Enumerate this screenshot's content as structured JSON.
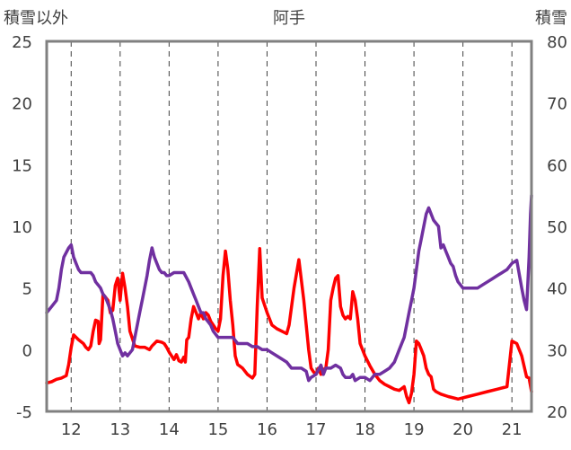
{
  "chart_data": {
    "type": "line",
    "title": "阿手",
    "ylabel_left": "積雪以外",
    "ylabel_right": "積雪",
    "x_ticks": [
      "12",
      "13",
      "14",
      "15",
      "16",
      "17",
      "18",
      "19",
      "20",
      "21"
    ],
    "xlim": [
      11.5,
      21.4
    ],
    "ylim_left": [
      -5,
      25
    ],
    "ylim_right": [
      20,
      80
    ],
    "left_ticks": [
      "25",
      "20",
      "15",
      "10",
      "5",
      "0",
      "-5"
    ],
    "right_ticks": [
      "80",
      "70",
      "60",
      "50",
      "40",
      "30",
      "20"
    ],
    "grid": {
      "vertical_dashed": true,
      "horizontal": false
    },
    "colors": {
      "red_series": "#ff0000",
      "purple_series": "#7030a0",
      "frame": "#808080"
    },
    "series": [
      {
        "axis": "left",
        "color": "#ff0000",
        "points": [
          [
            11.5,
            -2.7
          ],
          [
            11.6,
            -2.6
          ],
          [
            11.7,
            -2.4
          ],
          [
            11.8,
            -2.3
          ],
          [
            11.9,
            -2.1
          ],
          [
            11.95,
            -1.2
          ],
          [
            12.0,
            0.2
          ],
          [
            12.05,
            1.2
          ],
          [
            12.15,
            0.8
          ],
          [
            12.25,
            0.5
          ],
          [
            12.3,
            0.2
          ],
          [
            12.35,
            0.0
          ],
          [
            12.4,
            0.3
          ],
          [
            12.45,
            1.5
          ],
          [
            12.5,
            2.4
          ],
          [
            12.55,
            2.3
          ],
          [
            12.57,
            0.5
          ],
          [
            12.6,
            0.8
          ],
          [
            12.65,
            4.5
          ],
          [
            12.75,
            4.0
          ],
          [
            12.8,
            3.0
          ],
          [
            12.85,
            3.2
          ],
          [
            12.9,
            5.2
          ],
          [
            12.95,
            5.8
          ],
          [
            13.0,
            4.0
          ],
          [
            13.05,
            6.2
          ],
          [
            13.1,
            5.0
          ],
          [
            13.15,
            3.5
          ],
          [
            13.2,
            1.5
          ],
          [
            13.3,
            0.3
          ],
          [
            13.4,
            0.2
          ],
          [
            13.5,
            0.2
          ],
          [
            13.6,
            0.0
          ],
          [
            13.65,
            0.3
          ],
          [
            13.7,
            0.5
          ],
          [
            13.75,
            0.7
          ],
          [
            13.85,
            0.6
          ],
          [
            13.9,
            0.5
          ],
          [
            13.95,
            0.2
          ],
          [
            14.0,
            -0.2
          ],
          [
            14.05,
            -0.5
          ],
          [
            14.1,
            -0.8
          ],
          [
            14.15,
            -0.4
          ],
          [
            14.2,
            -0.9
          ],
          [
            14.25,
            -1.0
          ],
          [
            14.3,
            -0.6
          ],
          [
            14.33,
            -1.0
          ],
          [
            14.36,
            0.8
          ],
          [
            14.4,
            1.0
          ],
          [
            14.45,
            2.5
          ],
          [
            14.5,
            3.5
          ],
          [
            14.55,
            3.0
          ],
          [
            14.6,
            2.5
          ],
          [
            14.65,
            3.0
          ],
          [
            14.7,
            2.5
          ],
          [
            14.75,
            3.0
          ],
          [
            14.8,
            2.8
          ],
          [
            14.85,
            2.3
          ],
          [
            14.9,
            2.0
          ],
          [
            14.95,
            1.7
          ],
          [
            15.0,
            1.5
          ],
          [
            15.05,
            2.5
          ],
          [
            15.1,
            6.0
          ],
          [
            15.15,
            8.0
          ],
          [
            15.2,
            6.5
          ],
          [
            15.25,
            4.0
          ],
          [
            15.3,
            2.0
          ],
          [
            15.35,
            -0.5
          ],
          [
            15.4,
            -1.2
          ],
          [
            15.5,
            -1.5
          ],
          [
            15.6,
            -2.0
          ],
          [
            15.7,
            -2.3
          ],
          [
            15.75,
            -2.0
          ],
          [
            15.8,
            3.5
          ],
          [
            15.85,
            8.2
          ],
          [
            15.9,
            4.2
          ],
          [
            16.0,
            3.0
          ],
          [
            16.1,
            2.0
          ],
          [
            16.2,
            1.7
          ],
          [
            16.3,
            1.5
          ],
          [
            16.4,
            1.3
          ],
          [
            16.45,
            2.0
          ],
          [
            16.55,
            5.0
          ],
          [
            16.65,
            7.3
          ],
          [
            16.75,
            4.0
          ],
          [
            16.8,
            2.0
          ],
          [
            16.85,
            0.0
          ],
          [
            16.9,
            -1.5
          ],
          [
            16.95,
            -1.8
          ],
          [
            17.0,
            -2.0
          ],
          [
            17.05,
            -1.5
          ],
          [
            17.1,
            -2.0
          ],
          [
            17.15,
            -1.6
          ],
          [
            17.2,
            -1.5
          ],
          [
            17.25,
            0.0
          ],
          [
            17.3,
            4.0
          ],
          [
            17.35,
            5.0
          ],
          [
            17.4,
            5.8
          ],
          [
            17.45,
            6.0
          ],
          [
            17.5,
            3.5
          ],
          [
            17.55,
            2.8
          ],
          [
            17.6,
            2.5
          ],
          [
            17.65,
            2.7
          ],
          [
            17.7,
            2.5
          ],
          [
            17.75,
            4.7
          ],
          [
            17.8,
            4.0
          ],
          [
            17.85,
            2.5
          ],
          [
            17.9,
            0.5
          ],
          [
            18.0,
            -0.5
          ],
          [
            18.1,
            -1.3
          ],
          [
            18.2,
            -2.0
          ],
          [
            18.3,
            -2.5
          ],
          [
            18.4,
            -2.8
          ],
          [
            18.5,
            -3.0
          ],
          [
            18.6,
            -3.2
          ],
          [
            18.7,
            -3.3
          ],
          [
            18.8,
            -3.0
          ],
          [
            18.85,
            -3.8
          ],
          [
            18.9,
            -4.3
          ],
          [
            18.95,
            -3.5
          ],
          [
            19.0,
            -2.0
          ],
          [
            19.05,
            0.7
          ],
          [
            19.1,
            0.5
          ],
          [
            19.15,
            0.0
          ],
          [
            19.2,
            -0.5
          ],
          [
            19.25,
            -1.5
          ],
          [
            19.3,
            -2.0
          ],
          [
            19.35,
            -2.2
          ],
          [
            19.4,
            -3.2
          ],
          [
            19.45,
            -3.4
          ],
          [
            19.55,
            -3.6
          ],
          [
            19.7,
            -3.8
          ],
          [
            19.9,
            -4.0
          ],
          [
            20.1,
            -3.8
          ],
          [
            20.3,
            -3.6
          ],
          [
            20.5,
            -3.4
          ],
          [
            20.7,
            -3.2
          ],
          [
            20.9,
            -3.0
          ],
          [
            21.0,
            0.7
          ],
          [
            21.1,
            0.5
          ],
          [
            21.2,
            -0.5
          ],
          [
            21.3,
            -2.2
          ],
          [
            21.35,
            -2.3
          ],
          [
            21.4,
            -3.4
          ]
        ]
      },
      {
        "axis": "right",
        "color": "#7030a0",
        "points": [
          [
            11.5,
            36.0
          ],
          [
            11.6,
            37.0
          ],
          [
            11.7,
            38.0
          ],
          [
            11.75,
            40.0
          ],
          [
            11.8,
            43.0
          ],
          [
            11.85,
            45.0
          ],
          [
            11.95,
            46.5
          ],
          [
            12.0,
            47.0
          ],
          [
            12.05,
            45.0
          ],
          [
            12.1,
            44.0
          ],
          [
            12.15,
            43.0
          ],
          [
            12.2,
            42.5
          ],
          [
            12.3,
            42.5
          ],
          [
            12.4,
            42.5
          ],
          [
            12.45,
            42.0
          ],
          [
            12.5,
            41.0
          ],
          [
            12.55,
            40.5
          ],
          [
            12.6,
            40.0
          ],
          [
            12.65,
            39.0
          ],
          [
            12.7,
            38.5
          ],
          [
            12.75,
            37.5
          ],
          [
            12.8,
            36.5
          ],
          [
            12.85,
            35.0
          ],
          [
            12.9,
            33.0
          ],
          [
            12.95,
            31.0
          ],
          [
            13.0,
            30.0
          ],
          [
            13.05,
            29.0
          ],
          [
            13.1,
            29.5
          ],
          [
            13.15,
            29.0
          ],
          [
            13.2,
            29.5
          ],
          [
            13.25,
            30.0
          ],
          [
            13.3,
            32.0
          ],
          [
            13.35,
            34.0
          ],
          [
            13.4,
            36.0
          ],
          [
            13.45,
            38.0
          ],
          [
            13.5,
            40.0
          ],
          [
            13.55,
            42.0
          ],
          [
            13.6,
            44.5
          ],
          [
            13.65,
            46.5
          ],
          [
            13.7,
            45.0
          ],
          [
            13.75,
            44.0
          ],
          [
            13.8,
            43.0
          ],
          [
            13.85,
            42.5
          ],
          [
            13.9,
            42.5
          ],
          [
            13.95,
            42.0
          ],
          [
            14.0,
            42.0
          ],
          [
            14.1,
            42.5
          ],
          [
            14.2,
            42.5
          ],
          [
            14.3,
            42.5
          ],
          [
            14.4,
            41.0
          ],
          [
            14.45,
            40.0
          ],
          [
            14.5,
            39.0
          ],
          [
            14.55,
            38.0
          ],
          [
            14.6,
            37.0
          ],
          [
            14.65,
            36.0
          ],
          [
            14.7,
            36.0
          ],
          [
            14.75,
            35.0
          ],
          [
            14.8,
            34.5
          ],
          [
            14.85,
            34.0
          ],
          [
            14.9,
            33.0
          ],
          [
            14.95,
            32.5
          ],
          [
            15.0,
            32.0
          ],
          [
            15.1,
            32.0
          ],
          [
            15.2,
            32.0
          ],
          [
            15.3,
            32.0
          ],
          [
            15.4,
            31.0
          ],
          [
            15.5,
            31.0
          ],
          [
            15.6,
            31.0
          ],
          [
            15.7,
            30.5
          ],
          [
            15.75,
            30.5
          ],
          [
            15.8,
            30.5
          ],
          [
            15.9,
            30.0
          ],
          [
            16.0,
            30.0
          ],
          [
            16.1,
            29.5
          ],
          [
            16.2,
            29.0
          ],
          [
            16.3,
            28.5
          ],
          [
            16.4,
            28.0
          ],
          [
            16.45,
            27.5
          ],
          [
            16.5,
            27.0
          ],
          [
            16.6,
            27.0
          ],
          [
            16.7,
            27.0
          ],
          [
            16.8,
            26.5
          ],
          [
            16.85,
            25.0
          ],
          [
            16.9,
            25.5
          ],
          [
            17.0,
            26.0
          ],
          [
            17.1,
            27.5
          ],
          [
            17.15,
            26.0
          ],
          [
            17.2,
            27.0
          ],
          [
            17.3,
            27.0
          ],
          [
            17.4,
            27.5
          ],
          [
            17.5,
            27.0
          ],
          [
            17.55,
            26.0
          ],
          [
            17.6,
            25.5
          ],
          [
            17.7,
            25.5
          ],
          [
            17.75,
            26.0
          ],
          [
            17.8,
            25.0
          ],
          [
            17.9,
            25.5
          ],
          [
            18.0,
            25.5
          ],
          [
            18.1,
            25.0
          ],
          [
            18.2,
            26.0
          ],
          [
            18.3,
            26.0
          ],
          [
            18.4,
            26.5
          ],
          [
            18.5,
            27.0
          ],
          [
            18.6,
            28.0
          ],
          [
            18.7,
            30.0
          ],
          [
            18.8,
            32.0
          ],
          [
            18.85,
            34.0
          ],
          [
            18.9,
            36.0
          ],
          [
            18.95,
            38.0
          ],
          [
            19.0,
            40.0
          ],
          [
            19.05,
            43.0
          ],
          [
            19.1,
            46.0
          ],
          [
            19.15,
            48.0
          ],
          [
            19.2,
            50.0
          ],
          [
            19.25,
            52.0
          ],
          [
            19.3,
            53.0
          ],
          [
            19.4,
            51.0
          ],
          [
            19.5,
            50.0
          ],
          [
            19.55,
            46.5
          ],
          [
            19.6,
            47.0
          ],
          [
            19.65,
            46.0
          ],
          [
            19.7,
            45.0
          ],
          [
            19.75,
            44.0
          ],
          [
            19.8,
            43.5
          ],
          [
            19.85,
            42.0
          ],
          [
            19.9,
            41.0
          ],
          [
            19.95,
            40.5
          ],
          [
            20.0,
            40.0
          ],
          [
            20.1,
            40.0
          ],
          [
            20.2,
            40.0
          ],
          [
            20.3,
            40.0
          ],
          [
            20.4,
            40.5
          ],
          [
            20.5,
            41.0
          ],
          [
            20.6,
            41.5
          ],
          [
            20.7,
            42.0
          ],
          [
            20.8,
            42.5
          ],
          [
            20.9,
            43.0
          ],
          [
            21.0,
            44.0
          ],
          [
            21.1,
            44.5
          ],
          [
            21.2,
            40.0
          ],
          [
            21.25,
            38.0
          ],
          [
            21.3,
            36.5
          ],
          [
            21.35,
            45.0
          ],
          [
            21.38,
            52.0
          ],
          [
            21.4,
            55.0
          ]
        ]
      }
    ]
  }
}
